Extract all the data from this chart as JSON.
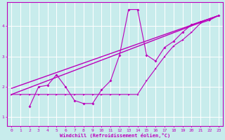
{
  "xlabel": "Windchill (Refroidissement éolien,°C)",
  "ylabel": "",
  "bg_color": "#c8ecec",
  "line_color": "#bb00bb",
  "grid_color": "#ffffff",
  "xlim": [
    -0.5,
    23.5
  ],
  "ylim": [
    0.7,
    4.8
  ],
  "xticks": [
    0,
    1,
    2,
    3,
    4,
    5,
    6,
    7,
    8,
    9,
    10,
    11,
    12,
    13,
    14,
    15,
    16,
    17,
    18,
    19,
    20,
    21,
    22,
    23
  ],
  "yticks": [
    1,
    2,
    3,
    4
  ],
  "series1_x": [
    0,
    1,
    2,
    3,
    4,
    5,
    6,
    7,
    8,
    9,
    10,
    11,
    12,
    13,
    14,
    15,
    16,
    17,
    18,
    19,
    20,
    21,
    22,
    23
  ],
  "series1_y": [
    1.75,
    1.75,
    1.75,
    1.75,
    1.75,
    1.75,
    1.75,
    1.75,
    1.75,
    1.75,
    1.75,
    1.75,
    1.75,
    1.75,
    1.75,
    2.2,
    2.6,
    3.0,
    3.35,
    3.55,
    3.8,
    4.1,
    4.2,
    4.35
  ],
  "series2_x": [
    2,
    3,
    4,
    5,
    6,
    7,
    8,
    9,
    10,
    11,
    12,
    13,
    14,
    15,
    16,
    17,
    18,
    19,
    20,
    21,
    22,
    23
  ],
  "series2_y": [
    1.35,
    2.0,
    2.05,
    2.4,
    2.0,
    1.55,
    1.45,
    1.45,
    1.9,
    2.2,
    3.05,
    4.55,
    4.55,
    3.05,
    2.85,
    3.3,
    3.5,
    3.8,
    4.05,
    4.15,
    4.25,
    4.35
  ],
  "trend1_x": [
    0,
    23
  ],
  "trend1_y": [
    1.75,
    4.35
  ],
  "trend2_x": [
    0,
    23
  ],
  "trend2_y": [
    1.95,
    4.35
  ],
  "figsize": [
    3.2,
    2.0
  ],
  "dpi": 100
}
